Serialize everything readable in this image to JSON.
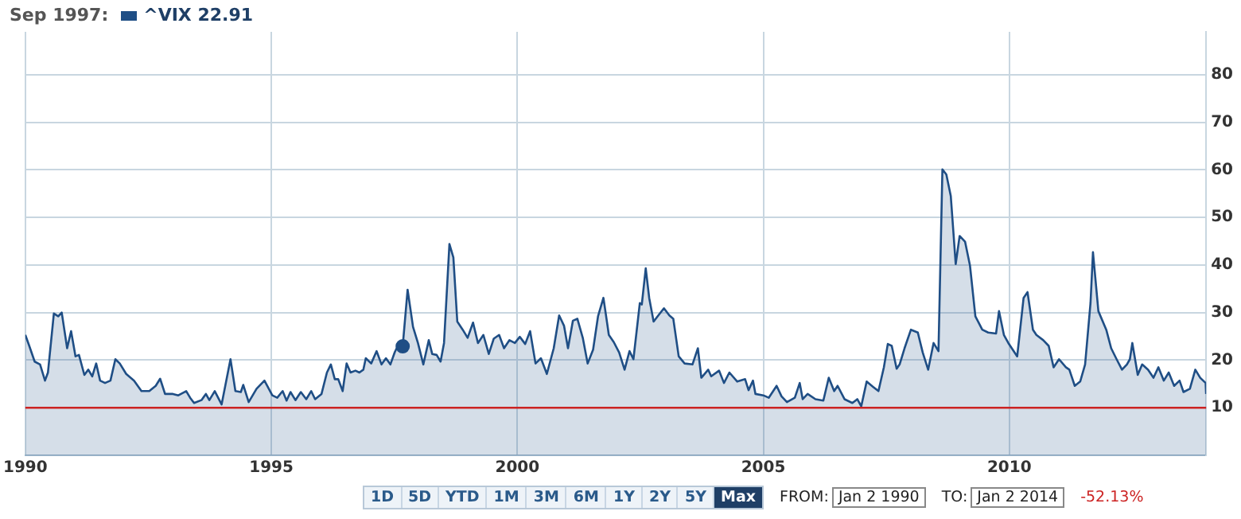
{
  "chart_data": {
    "type": "area",
    "title": "Sep 1997:",
    "legend": "top left",
    "xlim": [
      1990,
      2014
    ],
    "xticks": [
      1990,
      1995,
      2000,
      2005,
      2010
    ],
    "ylim": [
      0,
      89
    ],
    "yticks": [
      10,
      20,
      30,
      40,
      50,
      60,
      70,
      80
    ],
    "grid": true,
    "ref_lines": [
      {
        "axis": "y",
        "value": 10,
        "color": "#cc2222"
      }
    ],
    "annotations": [
      "1D",
      "5D",
      "YTD",
      "1M",
      "3M",
      "6M",
      "1Y",
      "2Y",
      "5Y",
      "Max",
      "FROM:",
      "Jan 2 1990",
      "TO:",
      "Jan 2 2014",
      "-52.13%"
    ],
    "series": [
      {
        "name": "^VIX 22.91",
        "color": "#1f4e85",
        "x": [
          1990.0,
          1990.08,
          1990.19,
          1990.3,
          1990.4,
          1990.46,
          1990.58,
          1990.67,
          1990.74,
          1990.85,
          1990.93,
          1991.02,
          1991.09,
          1991.2,
          1991.28,
          1991.36,
          1991.44,
          1991.52,
          1991.62,
          1991.73,
          1991.83,
          1991.92,
          1992.05,
          1992.21,
          1992.36,
          1992.52,
          1992.65,
          1992.74,
          1992.84,
          1993.0,
          1993.11,
          1993.27,
          1993.35,
          1993.43,
          1993.58,
          1993.67,
          1993.74,
          1993.85,
          1993.99,
          1994.17,
          1994.27,
          1994.38,
          1994.43,
          1994.54,
          1994.7,
          1994.86,
          1995.02,
          1995.12,
          1995.23,
          1995.31,
          1995.39,
          1995.49,
          1995.6,
          1995.71,
          1995.81,
          1995.89,
          1996.02,
          1996.13,
          1996.21,
          1996.29,
          1996.36,
          1996.45,
          1996.53,
          1996.61,
          1996.71,
          1996.79,
          1996.87,
          1996.92,
          1997.03,
          1997.14,
          1997.24,
          1997.33,
          1997.42,
          1997.51,
          1997.61,
          1997.67,
          1997.77,
          1997.88,
          1997.98,
          1998.09,
          1998.2,
          1998.27,
          1998.36,
          1998.44,
          1998.51,
          1998.62,
          1998.7,
          1998.78,
          1998.89,
          1998.99,
          1999.1,
          1999.2,
          1999.31,
          1999.42,
          1999.52,
          1999.63,
          1999.73,
          1999.84,
          1999.95,
          2000.05,
          2000.16,
          2000.26,
          2000.37,
          2000.48,
          2000.6,
          2000.74,
          2000.85,
          2000.95,
          2001.03,
          2001.13,
          2001.22,
          2001.33,
          2001.43,
          2001.54,
          2001.64,
          2001.75,
          2001.86,
          2001.96,
          2002.07,
          2002.18,
          2002.28,
          2002.36,
          2002.49,
          2002.53,
          2002.61,
          2002.68,
          2002.77,
          2002.85,
          2002.98,
          2003.09,
          2003.17,
          2003.28,
          2003.4,
          2003.56,
          2003.67,
          2003.74,
          2003.88,
          2003.94,
          2004.1,
          2004.2,
          2004.31,
          2004.47,
          2004.63,
          2004.7,
          2004.79,
          2004.84,
          2005.0,
          2005.11,
          2005.27,
          2005.37,
          2005.48,
          2005.64,
          2005.74,
          2005.8,
          2005.9,
          2006.06,
          2006.22,
          2006.33,
          2006.44,
          2006.51,
          2006.65,
          2006.81,
          2006.91,
          2006.99,
          2007.1,
          2007.23,
          2007.34,
          2007.45,
          2007.53,
          2007.61,
          2007.71,
          2007.77,
          2007.87,
          2008.0,
          2008.14,
          2008.24,
          2008.35,
          2008.46,
          2008.56,
          2008.64,
          2008.72,
          2008.81,
          2008.91,
          2008.99,
          2009.1,
          2009.2,
          2009.31,
          2009.45,
          2009.57,
          2009.73,
          2009.79,
          2009.89,
          2009.98,
          2010.05,
          2010.16,
          2010.29,
          2010.37,
          2010.48,
          2010.55,
          2010.69,
          2010.8,
          2010.9,
          2011.01,
          2011.15,
          2011.22,
          2011.33,
          2011.44,
          2011.54,
          2011.65,
          2011.7,
          2011.81,
          2011.97,
          2012.07,
          2012.18,
          2012.29,
          2012.39,
          2012.45,
          2012.5,
          2012.61,
          2012.7,
          2012.82,
          2012.93,
          2013.03,
          2013.14,
          2013.24,
          2013.35,
          2013.46,
          2013.54,
          2013.67,
          2013.78,
          2013.88,
          2013.99,
          2014.0
        ],
        "values": [
          25.3,
          23.0,
          19.7,
          19.1,
          15.7,
          17.4,
          29.8,
          29.2,
          30.0,
          22.5,
          26.1,
          20.8,
          21.1,
          16.9,
          18.0,
          16.6,
          19.3,
          15.7,
          15.2,
          15.7,
          20.2,
          19.3,
          17.1,
          15.7,
          13.5,
          13.5,
          14.6,
          16.1,
          12.9,
          12.9,
          12.6,
          13.5,
          12.1,
          11.0,
          11.6,
          12.9,
          11.6,
          13.5,
          10.7,
          20.2,
          13.5,
          13.3,
          14.8,
          11.2,
          14.0,
          15.7,
          12.6,
          12.1,
          13.5,
          11.5,
          13.3,
          11.6,
          13.3,
          11.8,
          13.5,
          11.8,
          12.9,
          17.4,
          19.1,
          16.0,
          16.0,
          13.5,
          19.3,
          17.4,
          17.8,
          17.4,
          18.0,
          20.4,
          19.3,
          21.9,
          19.1,
          20.4,
          19.1,
          21.7,
          23.8,
          22.91,
          34.8,
          27.0,
          23.6,
          19.1,
          24.2,
          21.3,
          21.1,
          19.7,
          23.6,
          44.4,
          41.6,
          28.1,
          26.4,
          24.7,
          27.9,
          23.6,
          25.3,
          21.3,
          24.5,
          25.3,
          22.5,
          24.2,
          23.6,
          24.9,
          23.4,
          26.1,
          19.3,
          20.4,
          17.1,
          22.5,
          29.4,
          27.2,
          22.5,
          28.3,
          28.7,
          24.7,
          19.3,
          22.2,
          29.2,
          33.1,
          25.3,
          23.8,
          21.6,
          18.0,
          21.9,
          20.2,
          32.0,
          31.7,
          39.3,
          33.1,
          28.1,
          29.2,
          30.9,
          29.4,
          28.7,
          20.8,
          19.3,
          19.1,
          22.5,
          16.3,
          18.0,
          16.6,
          17.8,
          15.2,
          17.4,
          15.5,
          16.0,
          13.7,
          15.7,
          12.9,
          12.6,
          12.1,
          14.6,
          12.4,
          11.2,
          12.1,
          15.2,
          11.8,
          12.9,
          11.8,
          11.5,
          16.3,
          13.5,
          14.6,
          11.8,
          11.0,
          11.8,
          10.3,
          15.5,
          14.4,
          13.5,
          18.5,
          23.4,
          23.0,
          18.2,
          19.1,
          22.5,
          26.4,
          25.8,
          21.6,
          18.0,
          23.6,
          21.9,
          60.1,
          59.0,
          54.5,
          40.2,
          46.1,
          44.9,
          39.9,
          29.2,
          26.4,
          25.8,
          25.6,
          30.3,
          25.3,
          23.6,
          22.5,
          20.8,
          33.1,
          34.3,
          26.4,
          25.3,
          24.2,
          23.0,
          18.5,
          20.2,
          18.5,
          18.0,
          14.6,
          15.5,
          19.1,
          32.0,
          42.7,
          30.3,
          26.4,
          22.5,
          20.2,
          18.0,
          19.1,
          20.2,
          23.6,
          16.9,
          19.1,
          18.0,
          16.3,
          18.5,
          15.7,
          17.4,
          14.6,
          15.7,
          13.3,
          14.0,
          18.0,
          16.3,
          15.2,
          12.9
        ]
      },
      {
        "type": "scatter",
        "color": "#1f4e85",
        "marker": "circle",
        "x": [
          1997.67
        ],
        "values": [
          22.91
        ]
      }
    ]
  }
}
